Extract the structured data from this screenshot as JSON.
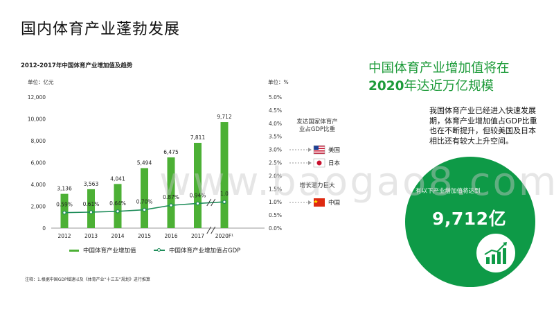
{
  "page": {
    "title": "国内体育产业蓬勃发展",
    "watermark": "www.baogao8.com",
    "note": "注释：1.根据中国GDP增速以及《体育产业“十三五”规划》进行推算"
  },
  "chart_meta": {
    "unit_left": "单位：亿元",
    "unit_right": "单位：%",
    "legend_bar": "中国体育产业增加值",
    "legend_line": "中国体育产业增加值占GDP"
  },
  "side": {
    "headline_line1": "中国体育产业增加值将在",
    "headline_line2_strong": "2020",
    "headline_line2_rest": "年达近万亿规模",
    "description": "我国体育产业已经进入快速发展期，体育产业增加值占GDP比重也在不断提升，但较美国及日本相比还有较大上升空间。",
    "bubble_text": "有以下产业增加值将达到",
    "bubble_value": "9,712亿"
  },
  "reference": {
    "title": "发达国家体育产业占GDP比重",
    "countries": [
      {
        "name": "美国",
        "flag": "us-flag"
      },
      {
        "name": "日本",
        "flag": "japan-flag"
      },
      {
        "name": "中国",
        "flag": "china-flag"
      }
    ],
    "gap_label": "增长潜力巨大"
  },
  "colors": {
    "bar": "#4cb035",
    "line": "#1f8d5a",
    "accent": "#1e9b3a",
    "bubble": "#0e9a47",
    "arrow": "#9a9a9a"
  },
  "chart_data": {
    "type": "bar",
    "title": "2012-2017年中国体育产业增加值及趋势",
    "categories": [
      "2012",
      "2013",
      "2014",
      "2015",
      "2016",
      "2017",
      "2020F¹"
    ],
    "series": [
      {
        "name": "中国体育产业增加值",
        "type": "bar",
        "axis": "left",
        "values": [
          3136,
          3563,
          4041,
          5494,
          6475,
          7811,
          9712
        ],
        "labels": [
          "3,136",
          "3,563",
          "4,041",
          "5,494",
          "6,475",
          "7,811",
          "9,712"
        ]
      },
      {
        "name": "中国体育产业增加值占GDP",
        "type": "line",
        "axis": "right",
        "values": [
          0.59,
          0.61,
          0.64,
          0.7,
          0.87,
          0.94,
          1.0
        ],
        "labels": [
          "0.59%",
          "0.61%",
          "0.64%",
          "0.70%",
          "0.87%",
          "0.94%",
          "1.0"
        ]
      }
    ],
    "y_left": {
      "min": 0,
      "max": 12000,
      "ticks": [
        "0",
        "2,000",
        "4,000",
        "6,000",
        "8,000",
        "10,000",
        "12,000"
      ]
    },
    "y_right": {
      "min": 0,
      "max": 5,
      "ticks": [
        "0.0%",
        "0.5%",
        "1.0%",
        "1.5%",
        "2.0%",
        "2.5%",
        "3.0%",
        "3.5%",
        "4.0%",
        "4.5%",
        "5.0%"
      ]
    },
    "axis_break_between": [
      "2017",
      "2020F¹"
    ]
  }
}
